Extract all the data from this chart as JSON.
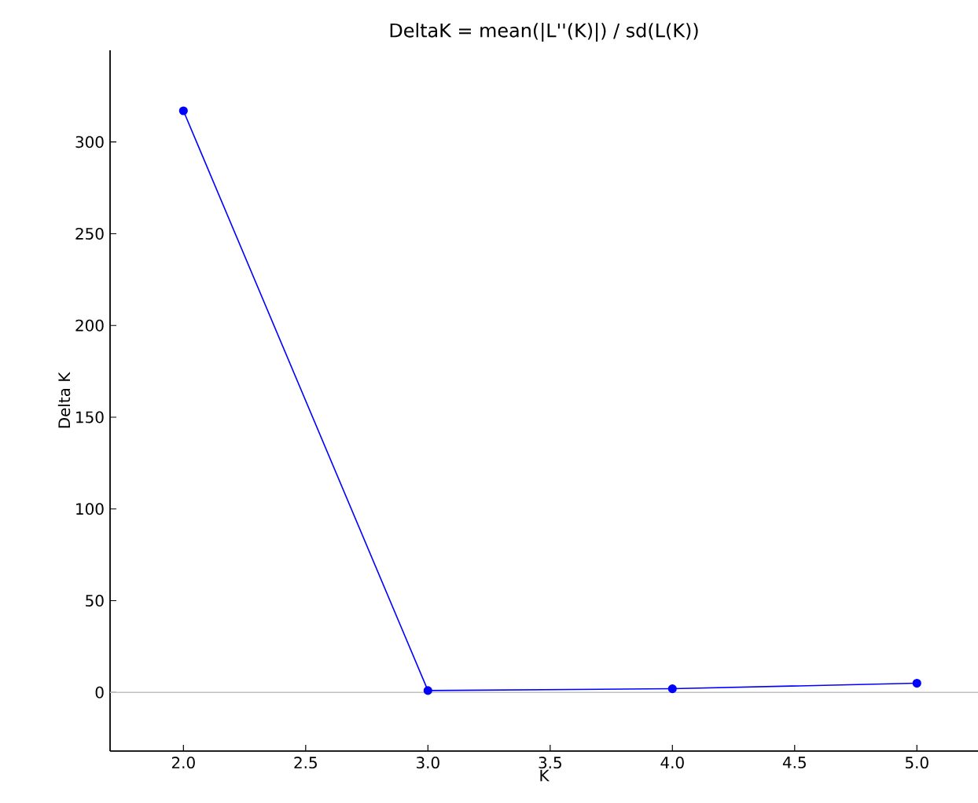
{
  "chart_data": {
    "type": "line",
    "title": "DeltaK = mean(|L''(K)|) / sd(L(K))",
    "xlabel": "K",
    "ylabel": "Delta K",
    "x": [
      2,
      3,
      4,
      5
    ],
    "series": [
      {
        "color": "#0000ff",
        "values": [
          317,
          1,
          2,
          5
        ]
      }
    ],
    "marker": "circle",
    "line_style": "solid",
    "grid": false,
    "xlim": [
      1.7,
      5.25
    ],
    "ylim": [
      -32,
      350
    ],
    "xticks": [
      {
        "value": 2,
        "label": "2.0"
      },
      {
        "value": 2.5,
        "label": "2.5"
      },
      {
        "value": 3,
        "label": "3.0"
      },
      {
        "value": 3.5,
        "label": "3.5"
      },
      {
        "value": 4,
        "label": "4.0"
      },
      {
        "value": 4.5,
        "label": "4.5"
      },
      {
        "value": 5,
        "label": "5.0"
      }
    ],
    "yticks": [
      0,
      50,
      100,
      150,
      200,
      250,
      300
    ],
    "ref_lines": [
      {
        "axis": "y",
        "value": 0,
        "color": "#c0c0c0"
      }
    ]
  }
}
